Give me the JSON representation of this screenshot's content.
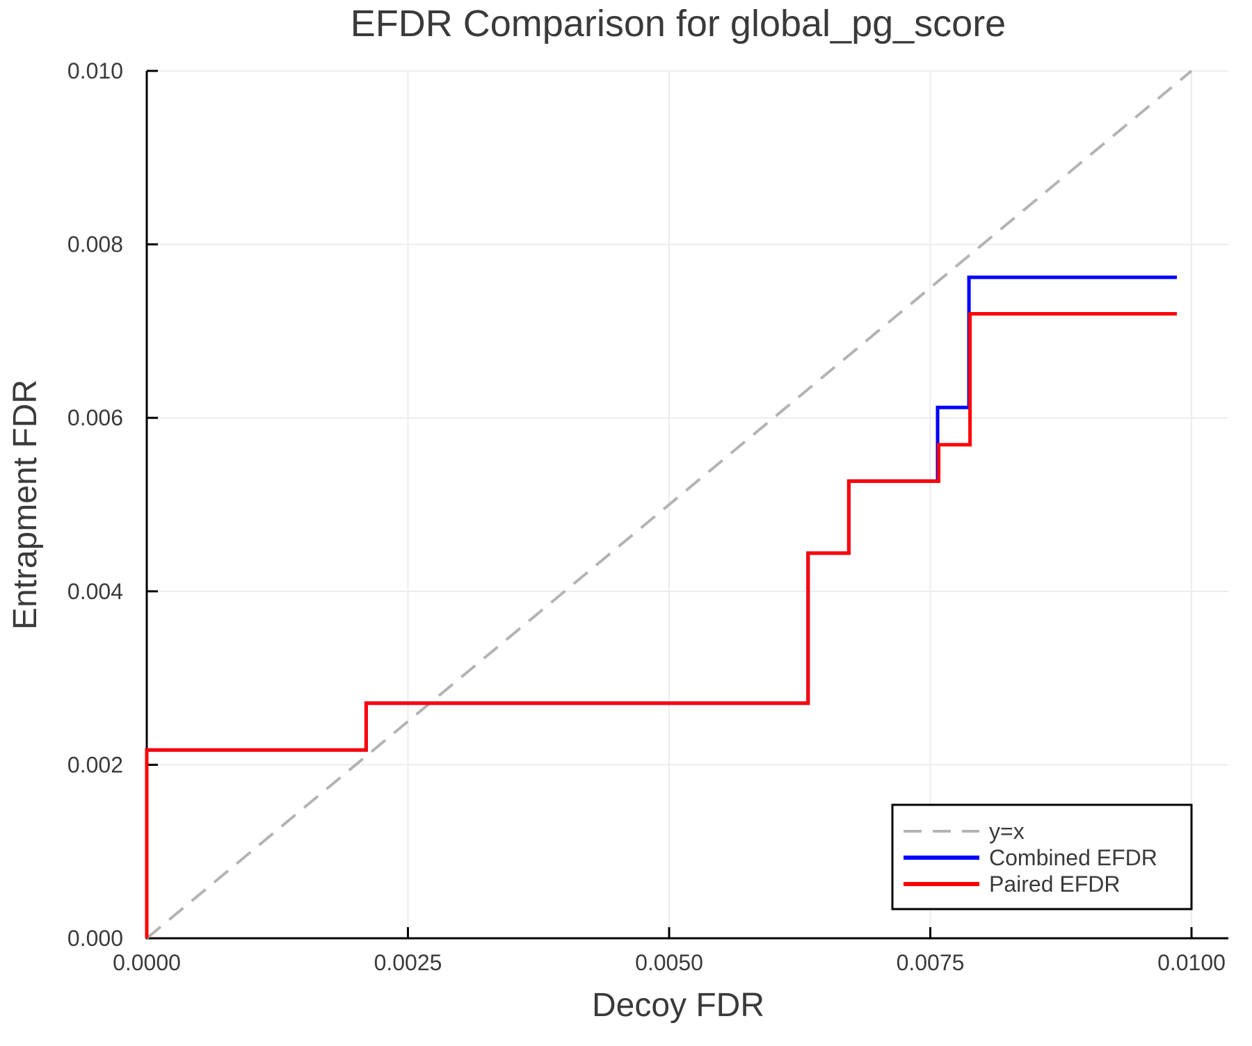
{
  "figure": {
    "background": "#ffffff",
    "text_color": "#3a3a3a",
    "grid_color": "#ececec",
    "spine_color": "#000000"
  },
  "chart_data": {
    "type": "line",
    "subtype": "step",
    "title": "EFDR Comparison for global_pg_score",
    "xlabel": "Decoy FDR",
    "ylabel": "Entrapment FDR",
    "xlim": [
      0.0,
      0.010353
    ],
    "ylim": [
      0.0,
      0.01
    ],
    "grid": true,
    "x_ticks": {
      "values": [
        0.0,
        0.0025,
        0.005,
        0.0075,
        0.01
      ],
      "labels": [
        "0.0000",
        "0.0025",
        "0.0050",
        "0.0075",
        "0.0100"
      ]
    },
    "y_ticks": {
      "values": [
        0.0,
        0.002,
        0.004,
        0.006,
        0.008,
        0.01
      ],
      "labels": [
        "0.000",
        "0.002",
        "0.004",
        "0.006",
        "0.008",
        "0.010"
      ]
    },
    "legend": {
      "position": "lower right",
      "entries": [
        "y=x",
        "Combined EFDR",
        "Paired EFDR"
      ]
    },
    "series": [
      {
        "name": "y=x",
        "color": "#b3b3b3",
        "style": "dashed",
        "width": 4,
        "points": [
          [
            0.0,
            0.0
          ],
          [
            0.01,
            0.01
          ]
        ]
      },
      {
        "name": "Combined EFDR",
        "color": "#0000ff",
        "style": "solid",
        "width": 5,
        "points": [
          [
            0.0,
            0.0
          ],
          [
            0.0,
            0.00217
          ],
          [
            0.0021,
            0.00217
          ],
          [
            0.0021,
            0.00271
          ],
          [
            0.00633,
            0.00271
          ],
          [
            0.00633,
            0.00444
          ],
          [
            0.00672,
            0.00444
          ],
          [
            0.00672,
            0.00527
          ],
          [
            0.00757,
            0.00527
          ],
          [
            0.00757,
            0.00612
          ],
          [
            0.00787,
            0.00612
          ],
          [
            0.00787,
            0.00762
          ],
          [
            0.00986,
            0.00762
          ]
        ]
      },
      {
        "name": "Paired EFDR",
        "color": "#ff0000",
        "style": "solid",
        "width": 5,
        "points": [
          [
            0.0,
            0.0
          ],
          [
            0.0,
            0.00217
          ],
          [
            0.0021,
            0.00217
          ],
          [
            0.0021,
            0.00271
          ],
          [
            0.00633,
            0.00271
          ],
          [
            0.00633,
            0.00444
          ],
          [
            0.00672,
            0.00444
          ],
          [
            0.00672,
            0.00527
          ],
          [
            0.00758,
            0.00527
          ],
          [
            0.00758,
            0.00569
          ],
          [
            0.00788,
            0.00569
          ],
          [
            0.00788,
            0.0072
          ],
          [
            0.00986,
            0.0072
          ]
        ]
      }
    ]
  }
}
